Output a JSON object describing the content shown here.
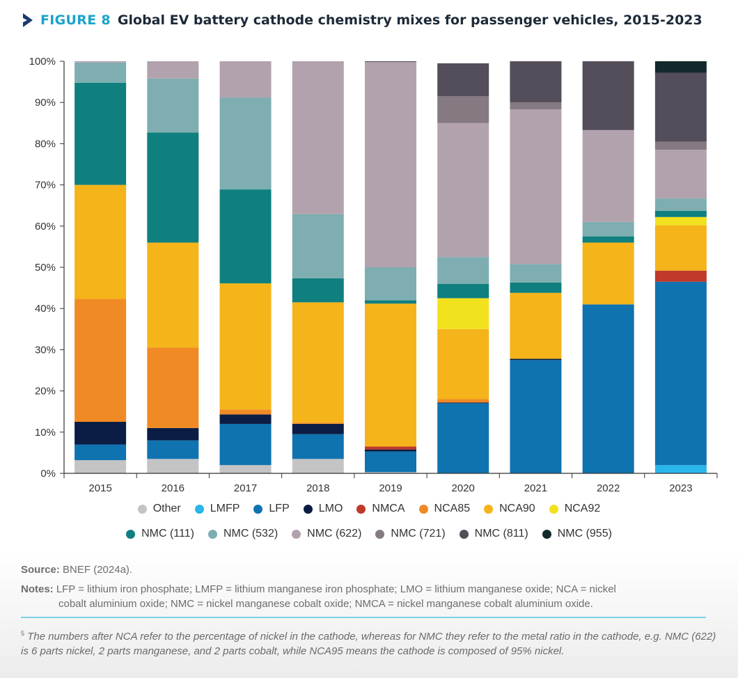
{
  "figure": {
    "label": "FIGURE 8",
    "title": "Global EV battery cathode chemistry mixes for passenger vehicles, 2015-2023",
    "accent_color": "#1aa3c9"
  },
  "chart_data": {
    "type": "bar",
    "stacked": true,
    "title": "Global EV battery cathode chemistry mixes for passenger vehicles, 2015-2023",
    "xlabel": "",
    "ylabel": "",
    "ylim": [
      0,
      100
    ],
    "y_ticks": [
      "0%",
      "10%",
      "20%",
      "30%",
      "40%",
      "50%",
      "60%",
      "70%",
      "80%",
      "90%",
      "100%"
    ],
    "categories": [
      "2015",
      "2016",
      "2017",
      "2018",
      "2019",
      "2020",
      "2021",
      "2022",
      "2023"
    ],
    "legend_position": "bottom",
    "series": [
      {
        "name": "Other",
        "color": "#c4c4c4",
        "values": [
          3.2,
          3.5,
          2.0,
          3.5,
          0.3,
          0.0,
          0.0,
          0.0,
          0.0
        ]
      },
      {
        "name": "LMFP",
        "color": "#29b6ea",
        "values": [
          0.0,
          0.0,
          0.0,
          0.0,
          0.0,
          0.0,
          0.0,
          0.0,
          2.0
        ]
      },
      {
        "name": "LFP",
        "color": "#0f73b0",
        "values": [
          3.8,
          4.5,
          10.0,
          6.0,
          5.0,
          17.0,
          27.5,
          41.0,
          44.5
        ]
      },
      {
        "name": "LMO",
        "color": "#0b1d44",
        "values": [
          5.5,
          3.0,
          2.3,
          2.5,
          0.5,
          0.2,
          0.3,
          0.0,
          0.0
        ]
      },
      {
        "name": "NMCA",
        "color": "#c0392b",
        "values": [
          0.0,
          0.0,
          0.0,
          0.0,
          0.7,
          0.0,
          0.0,
          0.0,
          2.7
        ]
      },
      {
        "name": "NCA85",
        "color": "#f08a24",
        "values": [
          29.8,
          19.5,
          1.2,
          0.3,
          0.0,
          0.8,
          0.0,
          0.0,
          0.0
        ]
      },
      {
        "name": "NCA90",
        "color": "#f4b41a",
        "values": [
          27.7,
          25.5,
          30.6,
          29.2,
          34.7,
          17.0,
          16.0,
          15.0,
          11.0
        ]
      },
      {
        "name": "NCA92",
        "color": "#f2e21e",
        "values": [
          0.0,
          0.0,
          0.0,
          0.0,
          0.0,
          7.5,
          0.0,
          0.0,
          2.0
        ]
      },
      {
        "name": "NMC (111)",
        "color": "#0f7f7f",
        "values": [
          24.8,
          26.7,
          22.8,
          5.8,
          0.8,
          3.5,
          2.5,
          1.5,
          1.5
        ]
      },
      {
        "name": "NMC (532)",
        "color": "#7eaeb1",
        "values": [
          4.9,
          13.1,
          22.3,
          15.6,
          8.0,
          6.5,
          4.5,
          3.5,
          3.0
        ]
      },
      {
        "name": "NMC (622)",
        "color": "#b2a2ae",
        "values": [
          0.3,
          4.2,
          8.8,
          37.1,
          49.8,
          32.5,
          37.5,
          22.3,
          11.8
        ]
      },
      {
        "name": "NMC (721)",
        "color": "#857a82",
        "values": [
          0.0,
          0.0,
          0.0,
          0.0,
          0.0,
          6.5,
          1.7,
          0.0,
          2.0
        ]
      },
      {
        "name": "NMC (811)",
        "color": "#544d5a",
        "values": [
          0.0,
          0.0,
          0.0,
          0.0,
          0.2,
          8.0,
          10.0,
          16.7,
          16.7
        ]
      },
      {
        "name": "NMC (955)",
        "color": "#13292b",
        "values": [
          0.0,
          0.0,
          0.0,
          0.0,
          0.0,
          0.0,
          0.0,
          0.0,
          2.8
        ]
      }
    ]
  },
  "footer": {
    "source_label": "Source:",
    "source_text": " BNEF (2024a).",
    "notes_label": "Notes:",
    "notes_line1": " LFP = lithium iron phosphate; LMFP = lithium manganese iron phosphate; LMO = lithium manganese oxide; NCA = nickel",
    "notes_line2": "cobalt aluminium oxide; NMC = nickel manganese cobalt oxide; NMCA = nickel manganese cobalt aluminium oxide.",
    "footnote_marker": "5",
    "footnote_text": " The numbers after NCA refer to the percentage of nickel in the cathode, whereas for NMC they refer to the metal ratio in the cathode, e.g. NMC (622) is 6 parts nickel, 2 parts manganese, and 2 parts cobalt, while NCA95 means the cathode is composed of 95% nickel.",
    "rule_color": "#7fd0e8"
  }
}
